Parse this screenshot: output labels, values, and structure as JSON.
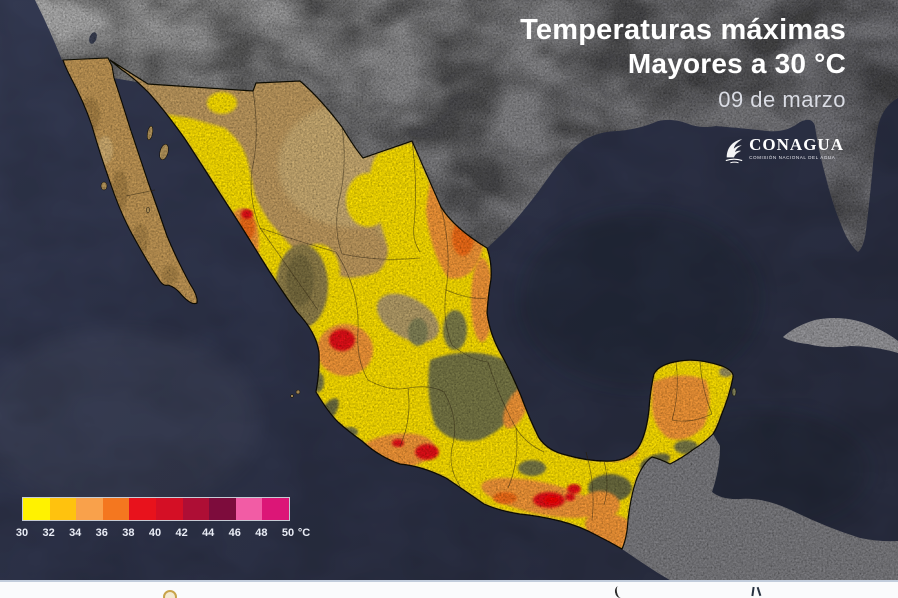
{
  "header": {
    "title_line1": "Temperaturas máximas",
    "title_line2": "Mayores a 30 °C",
    "date": "09 de marzo"
  },
  "logo": {
    "name": "CONAGUA",
    "subtitle": "COMISIÓN NACIONAL DEL AGUA"
  },
  "legend": {
    "unit": "°C",
    "tick_labels": [
      "30",
      "32",
      "34",
      "36",
      "38",
      "40",
      "42",
      "44",
      "46",
      "48",
      "50"
    ],
    "colors": [
      "#fff200",
      "#ffc20e",
      "#f9a14b",
      "#f4771f",
      "#e8121c",
      "#d40f25",
      "#ae0e35",
      "#7d0c3c",
      "#f25ca5",
      "#dc1677"
    ]
  },
  "map": {
    "colors": {
      "ocean": "#2d3148",
      "us_land": "#8f8f91",
      "foreign_land": "#7e7e82",
      "mexico_base": "#c29d62",
      "vegetation_olive": "#74744a",
      "temp_yellow": "#ffe30e",
      "temp_orange": "#f79a3a",
      "temp_red": "#e8131b"
    }
  }
}
